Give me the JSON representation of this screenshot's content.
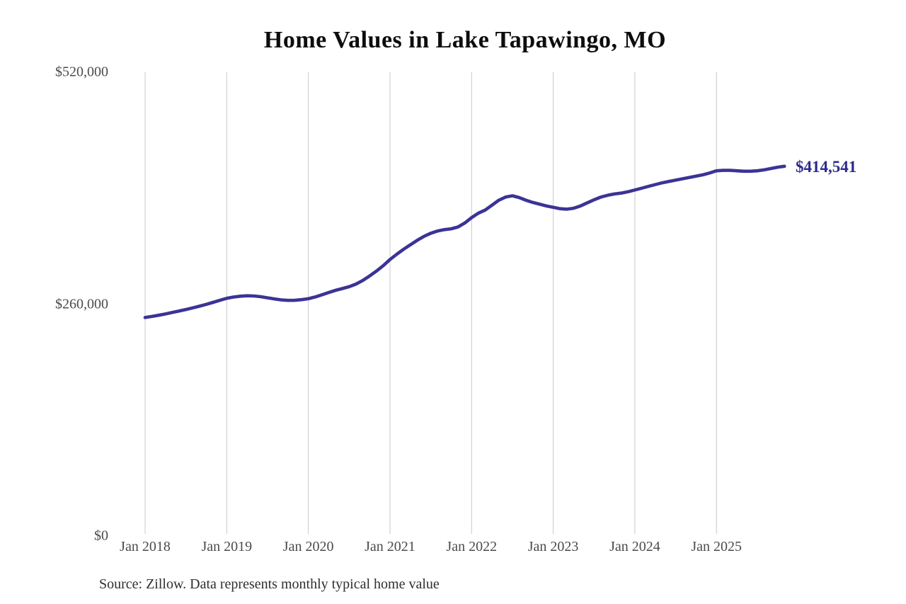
{
  "title": "Home Values in Lake Tapawingo, MO",
  "source_note": "Source: Zillow. Data represents monthly typical home value",
  "current_value_label": "$414,541",
  "colors": {
    "line": "#3b3396",
    "value_label": "#2d2a8c",
    "grid": "#c8c8c8",
    "axis_text": "#4b4b4b",
    "title_text": "#0d0d0d",
    "background": "#ffffff"
  },
  "chart_data": {
    "type": "line",
    "title": "Home Values in Lake Tapawingo, MO",
    "x_unit": "month",
    "x_start": "2018-01",
    "x_tick_labels": [
      "Jan 2018",
      "Jan 2019",
      "Jan 2020",
      "Jan 2021",
      "Jan 2022",
      "Jan 2023",
      "Jan 2024",
      "Jan 2025"
    ],
    "y_ticks": [
      {
        "value": 0,
        "label": "$0"
      },
      {
        "value": 260000,
        "label": "$260,000"
      },
      {
        "value": 520000,
        "label": "$520,000"
      }
    ],
    "ylim": [
      0,
      520000
    ],
    "grid": "vertical",
    "legend": "none",
    "series": [
      {
        "name": "Monthly typical home value",
        "final_value": 414541,
        "values": [
          245000,
          246200,
          247500,
          249000,
          250600,
          252300,
          254000,
          255800,
          257700,
          259800,
          262000,
          264300,
          266500,
          267900,
          268900,
          269400,
          269100,
          268300,
          267100,
          265900,
          264800,
          264200,
          264300,
          265000,
          266000,
          268000,
          270500,
          273000,
          275500,
          277500,
          279500,
          282500,
          286500,
          291500,
          297000,
          303000,
          310000,
          316000,
          321500,
          326500,
          331500,
          336000,
          339500,
          342000,
          343500,
          344500,
          346500,
          351000,
          357000,
          362000,
          365500,
          371000,
          376500,
          380000,
          381500,
          379500,
          376500,
          374000,
          372000,
          370000,
          368500,
          367000,
          366500,
          367500,
          370000,
          373500,
          377000,
          380000,
          382000,
          383500,
          384500,
          386000,
          388000,
          390000,
          392000,
          394000,
          396000,
          397500,
          399000,
          400500,
          402000,
          403500,
          405000,
          407000,
          409500,
          410000,
          410000,
          409500,
          409000,
          409000,
          409500,
          410500,
          412000,
          413500,
          414541
        ]
      }
    ]
  }
}
